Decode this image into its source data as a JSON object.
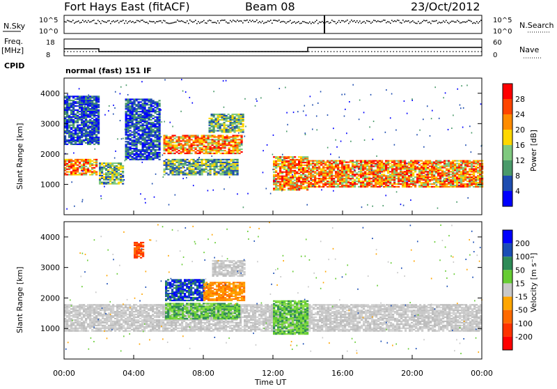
{
  "header": {
    "station": "Fort Hays East (fitACF)",
    "beam": "Beam 08",
    "date": "23/Oct/2012"
  },
  "status_panels": {
    "noise_label_left": "N.Sky",
    "noise_label_right": "N.Search",
    "noise_ticks_left": [
      "10^5",
      "10^0"
    ],
    "noise_ticks_right": [
      "10^5",
      "10^0"
    ],
    "freq_label": "Freq.",
    "freq_unit": "[MHz]",
    "freq_ticks": [
      "18",
      "8"
    ],
    "nave_label": "Nave",
    "nave_ticks": [
      "60",
      "0"
    ],
    "cpid_label": "CPID",
    "cpid_value": "normal (fast) 151 IF"
  },
  "chart_data": [
    {
      "type": "heatmap",
      "name": "power",
      "ylabel": "Slant Range [km]",
      "xlabel": "Time UT",
      "x_ticks": [
        "00:00",
        "04:00",
        "08:00",
        "12:00",
        "16:00",
        "20:00",
        "00:00"
      ],
      "y_ticks": [
        1000,
        2000,
        3000,
        4000
      ],
      "colorbar_label": "Power [dB]",
      "colorbar_ticks": [
        28,
        24,
        20,
        16,
        12,
        8,
        4
      ],
      "colorbar_colors": [
        "#ff0000",
        "#ff4500",
        "#ff8c00",
        "#ffd700",
        "#7fc97f",
        "#4a9a6a",
        "#1e4db0",
        "#0000ff"
      ],
      "frequency_mhz_steps": [
        {
          "from": "00:00",
          "to": "02:00",
          "mhz": 13
        },
        {
          "from": "02:00",
          "to": "14:00",
          "mhz": 11
        },
        {
          "from": "14:00",
          "to": "24:00",
          "mhz": 14
        }
      ],
      "regions": [
        {
          "t0": 0.0,
          "t1": 1.9,
          "r0": 1300,
          "r1": 1800,
          "level": "high"
        },
        {
          "t0": 2.0,
          "t1": 3.4,
          "r0": 1000,
          "r1": 1700,
          "level": "mid"
        },
        {
          "t0": 5.7,
          "t1": 10.2,
          "r0": 2000,
          "r1": 2600,
          "level": "high"
        },
        {
          "t0": 5.7,
          "t1": 10.0,
          "r0": 1300,
          "r1": 1800,
          "level": "mid"
        },
        {
          "t0": 8.3,
          "t1": 10.3,
          "r0": 2700,
          "r1": 3300,
          "level": "mid"
        },
        {
          "t0": 12.0,
          "t1": 14.0,
          "r0": 800,
          "r1": 1900,
          "level": "high"
        },
        {
          "t0": 14.0,
          "t1": 24.0,
          "r0": 900,
          "r1": 1800,
          "level": "high"
        },
        {
          "t0": 0.0,
          "t1": 2.0,
          "r0": 2300,
          "r1": 3900,
          "level": "low"
        },
        {
          "t0": 3.5,
          "t1": 5.5,
          "r0": 1800,
          "r1": 3800,
          "level": "low"
        }
      ]
    },
    {
      "type": "heatmap",
      "name": "velocity",
      "ylabel": "Slant Range [km]",
      "xlabel": "Time UT",
      "x_ticks": [
        "00:00",
        "04:00",
        "08:00",
        "12:00",
        "16:00",
        "20:00",
        "00:00"
      ],
      "y_ticks": [
        1000,
        2000,
        3000,
        4000
      ],
      "colorbar_label": "Velocity [m s⁻¹]",
      "colorbar_ticks": [
        200,
        100,
        50,
        15,
        -15,
        -50,
        -100,
        -200
      ],
      "colorbar_colors": [
        "#0000ff",
        "#1a4db5",
        "#2e8b57",
        "#66cc33",
        "#c8c8c8",
        "#ffa500",
        "#ff6a00",
        "#ff3300",
        "#ff0000"
      ],
      "regions": [
        {
          "t0": 0.0,
          "t1": 24.0,
          "r0": 900,
          "r1": 1800,
          "level": "gs"
        },
        {
          "t0": 5.8,
          "t1": 8.0,
          "r0": 1900,
          "r1": 2600,
          "level": "pos_high"
        },
        {
          "t0": 8.0,
          "t1": 10.3,
          "r0": 1900,
          "r1": 2500,
          "level": "neg_mid"
        },
        {
          "t0": 5.8,
          "t1": 10.0,
          "r0": 1300,
          "r1": 1800,
          "level": "pos_low"
        },
        {
          "t0": 12.0,
          "t1": 14.0,
          "r0": 800,
          "r1": 1900,
          "level": "pos_low"
        },
        {
          "t0": 4.0,
          "t1": 4.6,
          "r0": 3300,
          "r1": 3800,
          "level": "neg_high"
        },
        {
          "t0": 8.5,
          "t1": 10.3,
          "r0": 2700,
          "r1": 3200,
          "level": "gs"
        }
      ]
    }
  ]
}
